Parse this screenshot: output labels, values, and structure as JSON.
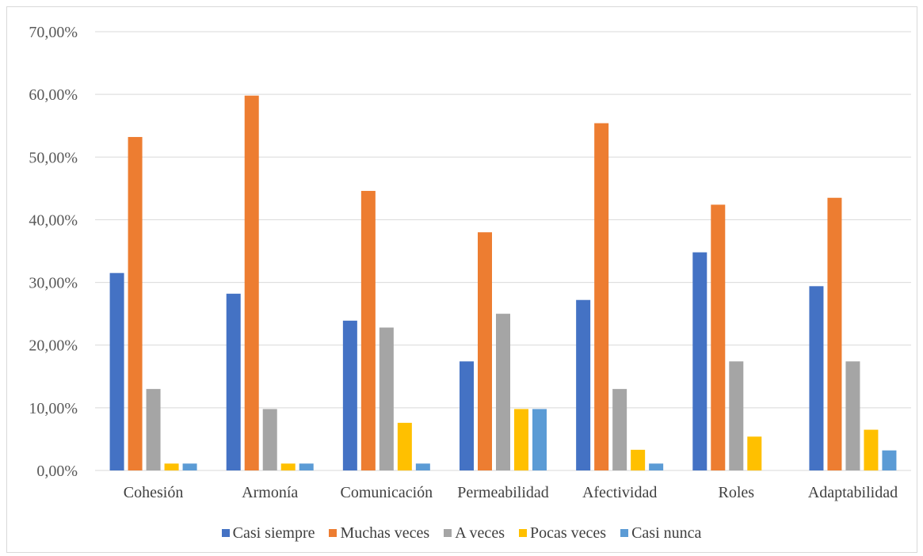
{
  "chart_data": {
    "type": "bar",
    "categories": [
      "Cohesión",
      "Armonía",
      "Comunicación",
      "Permeabilidad",
      "Afectividad",
      "Roles",
      "Adaptabilidad"
    ],
    "series": [
      {
        "name": "Casi siempre",
        "color": "#4472C4",
        "values": [
          31.5,
          28.2,
          23.9,
          17.4,
          27.2,
          34.8,
          29.4
        ]
      },
      {
        "name": "Muchas veces",
        "color": "#ED7D31",
        "values": [
          53.2,
          59.8,
          44.6,
          38.0,
          55.4,
          42.4,
          43.5
        ]
      },
      {
        "name": "A veces",
        "color": "#A5A5A5",
        "values": [
          13.0,
          9.8,
          22.8,
          25.0,
          13.0,
          17.4,
          17.4
        ]
      },
      {
        "name": "Pocas veces",
        "color": "#FFC000",
        "values": [
          1.1,
          1.1,
          7.6,
          9.8,
          3.3,
          5.4,
          6.5
        ]
      },
      {
        "name": "Casi nunca",
        "color": "#5B9BD5",
        "values": [
          1.1,
          1.1,
          1.1,
          9.8,
          1.1,
          0,
          3.2
        ]
      }
    ],
    "yticks": [
      "0,00%",
      "10,00%",
      "20,00%",
      "30,00%",
      "40,00%",
      "50,00%",
      "60,00%",
      "70,00%"
    ],
    "ylim": [
      0,
      70
    ],
    "grid": true,
    "legend_position": "bottom"
  }
}
